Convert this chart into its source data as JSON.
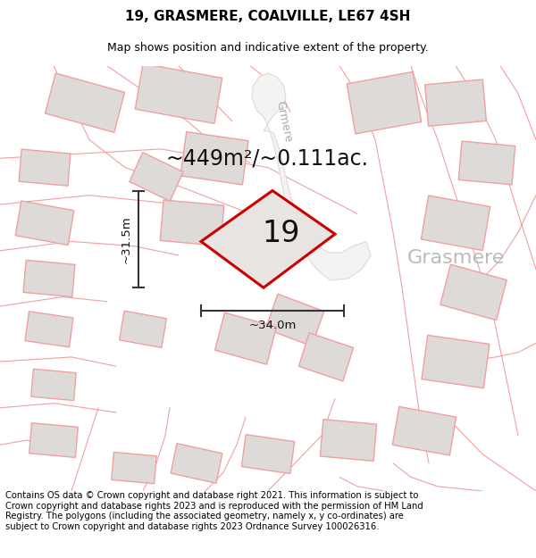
{
  "title_line1": "19, GRASMERE, COALVILLE, LE67 4SH",
  "title_line2": "Map shows position and indicative extent of the property.",
  "footer_text": "Contains OS data © Crown copyright and database right 2021. This information is subject to Crown copyright and database rights 2023 and is reproduced with the permission of HM Land Registry. The polygons (including the associated geometry, namely x, y co-ordinates) are subject to Crown copyright and database rights 2023 Ordnance Survey 100026316.",
  "area_text": "~449m²/~0.111ac.",
  "property_number": "19",
  "dim_width": "~34.0m",
  "dim_height": "~31.5m",
  "map_bg": "#f2f0f0",
  "property_fill": "#e8e4e2",
  "property_edge": "#cc0000",
  "neighbor_edge": "#f0a0a0",
  "neighbor_fill": "#dddad8",
  "road_line_color": "#f0a0a0",
  "road_fill": "#f8f6f5",
  "grasmere_road_fill": "#e8e4e2",
  "dim_line_color": "#333333",
  "title_fontsize": 11,
  "subtitle_fontsize": 9,
  "footer_fontsize": 7.2,
  "label_fontsize": 24,
  "area_fontsize": 17,
  "dim_fontsize": 9.5,
  "street_label_fontsize": 12
}
